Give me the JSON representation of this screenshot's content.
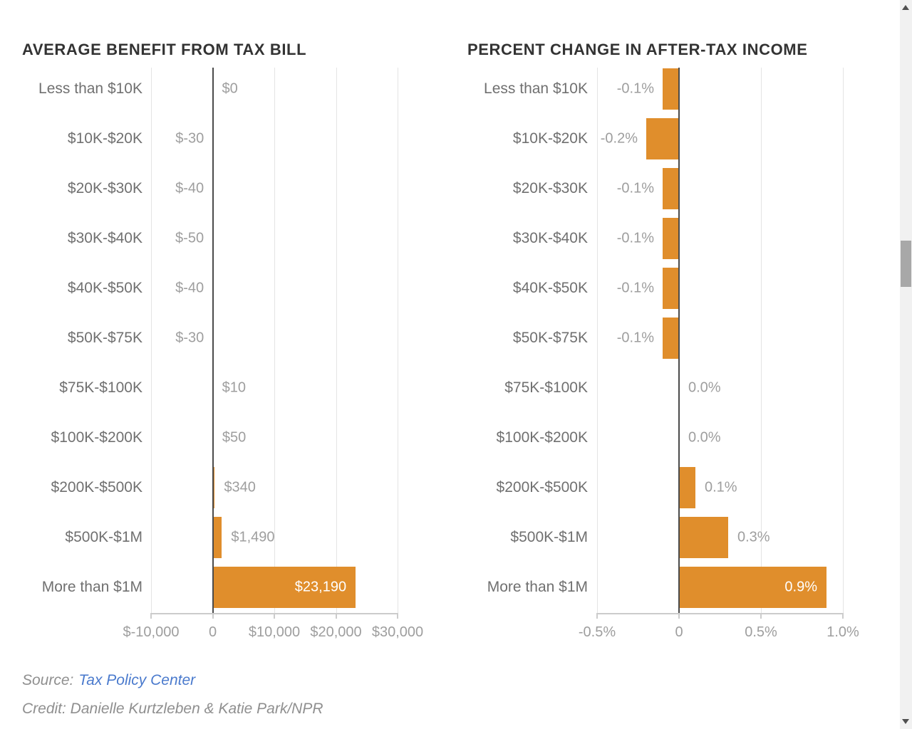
{
  "chart_data": [
    {
      "type": "bar",
      "orientation": "horizontal",
      "title": "AVERAGE BENEFIT FROM TAX BILL",
      "categories": [
        "Less than $10K",
        "$10K-$20K",
        "$20K-$30K",
        "$30K-$40K",
        "$40K-$50K",
        "$50K-$75K",
        "$75K-$100K",
        "$100K-$200K",
        "$200K-$500K",
        "$500K-$1M",
        "More than $1M"
      ],
      "values": [
        0,
        -30,
        -40,
        -50,
        -40,
        -30,
        10,
        50,
        340,
        1490,
        23190
      ],
      "value_labels": [
        "$0",
        "$-30",
        "$-40",
        "$-50",
        "$-40",
        "$-30",
        "$10",
        "$50",
        "$340",
        "$1,490",
        "$23,190"
      ],
      "xlim": [
        -10000,
        30000
      ],
      "xticks": [
        {
          "value": -10000,
          "label": "$-10,000"
        },
        {
          "value": 0,
          "label": "0"
        },
        {
          "value": 10000,
          "label": "$10,000"
        },
        {
          "value": 20000,
          "label": "$20,000"
        },
        {
          "value": 30000,
          "label": "$30,000"
        }
      ],
      "grid": true,
      "legend": "none",
      "bar_color": "#e08e2c"
    },
    {
      "type": "bar",
      "orientation": "horizontal",
      "title": "PERCENT CHANGE IN AFTER-TAX INCOME",
      "categories": [
        "Less than $10K",
        "$10K-$20K",
        "$20K-$30K",
        "$30K-$40K",
        "$40K-$50K",
        "$50K-$75K",
        "$75K-$100K",
        "$100K-$200K",
        "$200K-$500K",
        "$500K-$1M",
        "More than $1M"
      ],
      "values": [
        -0.1,
        -0.2,
        -0.1,
        -0.1,
        -0.1,
        -0.1,
        0.0,
        0.0,
        0.1,
        0.3,
        0.9
      ],
      "value_labels": [
        "-0.1%",
        "-0.2%",
        "-0.1%",
        "-0.1%",
        "-0.1%",
        "-0.1%",
        "0.0%",
        "0.0%",
        "0.1%",
        "0.3%",
        "0.9%"
      ],
      "xlim": [
        -0.5,
        1.0
      ],
      "xticks": [
        {
          "value": -0.5,
          "label": "-0.5%"
        },
        {
          "value": 0,
          "label": "0"
        },
        {
          "value": 0.5,
          "label": "0.5%"
        },
        {
          "value": 1.0,
          "label": "1.0%"
        }
      ],
      "grid": true,
      "legend": "none",
      "bar_color": "#e08e2c"
    }
  ],
  "footer": {
    "source_label": "Source:",
    "source_link": "Tax Policy Center",
    "credit": "Credit: Danielle Kurtzleben & Katie Park/NPR"
  },
  "colors": {
    "bar_orange": "#e08e2c",
    "title_text": "#333333",
    "category_text": "#707070",
    "value_text": "#9e9e9e",
    "zero_axis": "#4b4b4b",
    "gridline": "#e4e4e4",
    "axis_line": "#cccccc",
    "link_blue": "#4a7acd",
    "scrollbar_track": "#f1f1f1",
    "scrollbar_thumb": "#a8a8a8"
  },
  "scrollbar": {
    "up_icon": "scroll-up-arrow",
    "down_icon": "scroll-down-arrow"
  }
}
